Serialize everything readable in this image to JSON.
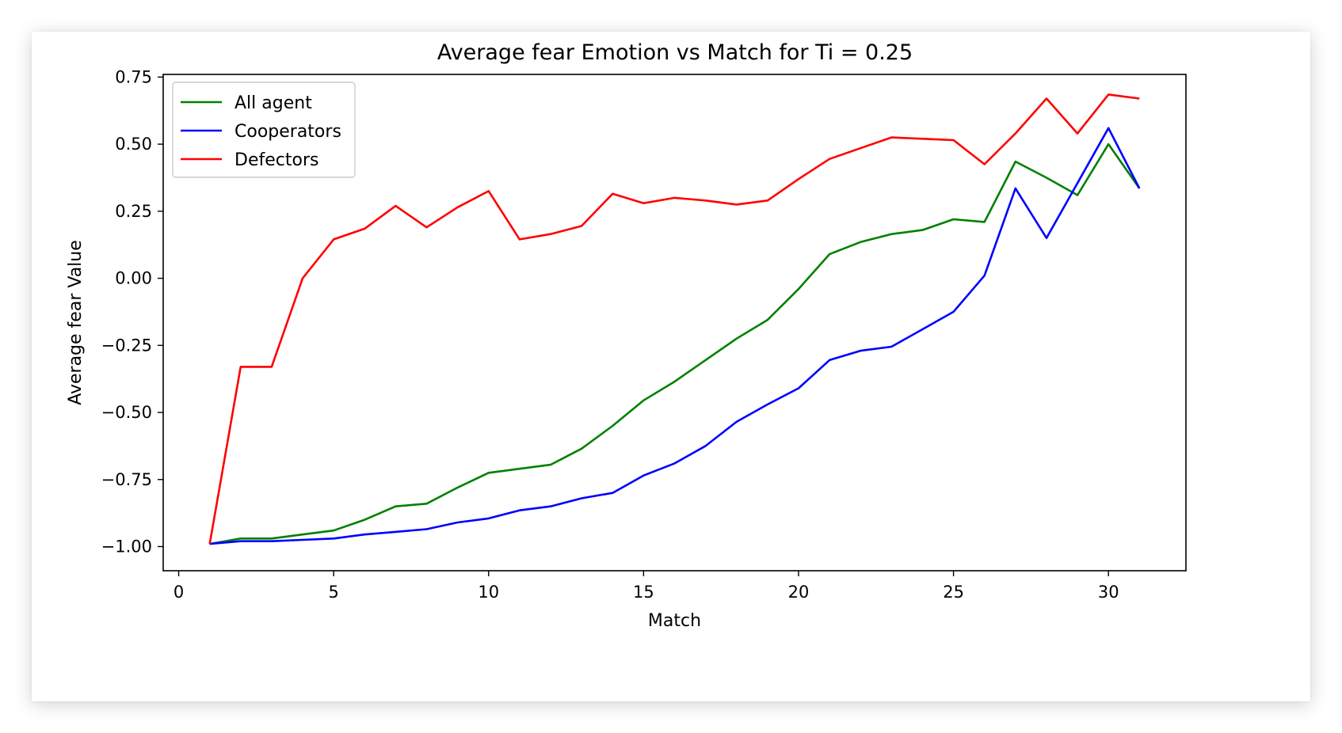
{
  "chart_data": {
    "type": "line",
    "title": "Average fear Emotion vs Match for Ti = 0.25",
    "xlabel": "Match",
    "ylabel": "Average fear Value",
    "xlim": [
      -0.5,
      32.5
    ],
    "ylim": [
      -1.09,
      0.76
    ],
    "xticks": [
      0,
      5,
      10,
      15,
      20,
      25,
      30
    ],
    "yticks": [
      0.75,
      0.5,
      0.25,
      0.0,
      -0.25,
      -0.5,
      -0.75,
      -1.0
    ],
    "ytick_labels": [
      "0.75",
      "0.50",
      "0.25",
      "0.00",
      "−0.25",
      "−0.50",
      "−0.75",
      "−1.00"
    ],
    "grid": false,
    "legend_position": "top-left",
    "x": [
      1,
      2,
      3,
      4,
      5,
      6,
      7,
      8,
      9,
      10,
      11,
      12,
      13,
      14,
      15,
      16,
      17,
      18,
      19,
      20,
      21,
      22,
      23,
      24,
      25,
      26,
      27,
      28,
      29,
      30,
      31
    ],
    "series": [
      {
        "name": "All agent",
        "color": "#008000",
        "values": [
          -0.99,
          -0.97,
          -0.97,
          -0.955,
          -0.94,
          -0.9,
          -0.85,
          -0.84,
          -0.78,
          -0.725,
          -0.71,
          -0.695,
          -0.635,
          -0.55,
          -0.455,
          -0.385,
          -0.305,
          -0.225,
          -0.155,
          -0.04,
          0.09,
          0.135,
          0.165,
          0.18,
          0.22,
          0.21,
          0.435,
          0.375,
          0.31,
          0.5,
          0.335
        ]
      },
      {
        "name": "Cooperators",
        "color": "#0000ff",
        "values": [
          -0.99,
          -0.98,
          -0.98,
          -0.975,
          -0.97,
          -0.955,
          -0.945,
          -0.935,
          -0.91,
          -0.895,
          -0.865,
          -0.85,
          -0.82,
          -0.8,
          -0.735,
          -0.69,
          -0.625,
          -0.535,
          -0.47,
          -0.41,
          -0.305,
          -0.27,
          -0.255,
          -0.19,
          -0.125,
          0.01,
          0.335,
          0.15,
          0.355,
          0.56,
          0.335
        ]
      },
      {
        "name": "Defectors",
        "color": "#ff0000",
        "values": [
          -0.99,
          -0.33,
          -0.33,
          0.0,
          0.145,
          0.185,
          0.27,
          0.19,
          0.265,
          0.325,
          0.145,
          0.165,
          0.195,
          0.315,
          0.28,
          0.3,
          0.29,
          0.275,
          0.29,
          0.37,
          0.445,
          0.485,
          0.525,
          0.52,
          0.515,
          0.425,
          0.54,
          0.67,
          0.54,
          0.685,
          0.67
        ]
      }
    ]
  }
}
